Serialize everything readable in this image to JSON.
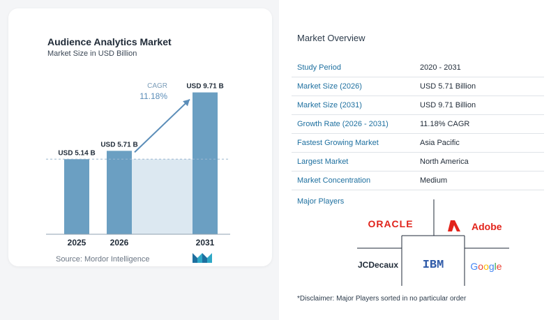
{
  "chart_data": {
    "type": "bar",
    "title": "Audience Analytics Market",
    "subtitle": "Market Size in USD Billion",
    "categories": [
      "2025",
      "2026",
      "2031"
    ],
    "values": [
      5.14,
      5.71,
      9.71
    ],
    "value_labels": [
      "USD 5.14 B",
      "USD 5.71 B",
      "USD 9.71 B"
    ],
    "ylim": [
      0,
      10.5
    ],
    "grid": false,
    "annotation": {
      "label": "CAGR",
      "value": "11.18%"
    },
    "colors": {
      "bar": "#6b9fc2",
      "bar_dark": "#5a8fb4",
      "shade": "#dce8f1",
      "dashed": "#9bb8cf",
      "arrow": "#5b8db8",
      "cagr": "#5b8db8"
    },
    "source": "Source:  Mordor Intelligence"
  },
  "overview": {
    "title": "Market Overview",
    "rows": [
      {
        "key": "Study Period",
        "value": "2020 - 2031"
      },
      {
        "key": "Market Size (2026)",
        "value": "USD 5.71 Billion"
      },
      {
        "key": "Market Size (2031)",
        "value": "USD 9.71 Billion"
      },
      {
        "key": "Growth Rate (2026 - 2031)",
        "value": "11.18% CAGR"
      },
      {
        "key": "Fastest Growing Market",
        "value": "Asia Pacific"
      },
      {
        "key": "Largest Market",
        "value": "North America"
      },
      {
        "key": "Market Concentration",
        "value": "Medium"
      }
    ]
  },
  "players": {
    "title": "Major Players",
    "logos": [
      "ORACLE",
      "Adobe",
      "JCDecaux",
      "IBM",
      "Google"
    ],
    "colors": {
      "oracle": "#e0231b",
      "adobe": "#e2231a",
      "ibm": "#2f5aa8",
      "jcdecaux": "#1f2a37"
    },
    "disclaimer": "*Disclaimer: Major Players sorted in no particular order"
  }
}
